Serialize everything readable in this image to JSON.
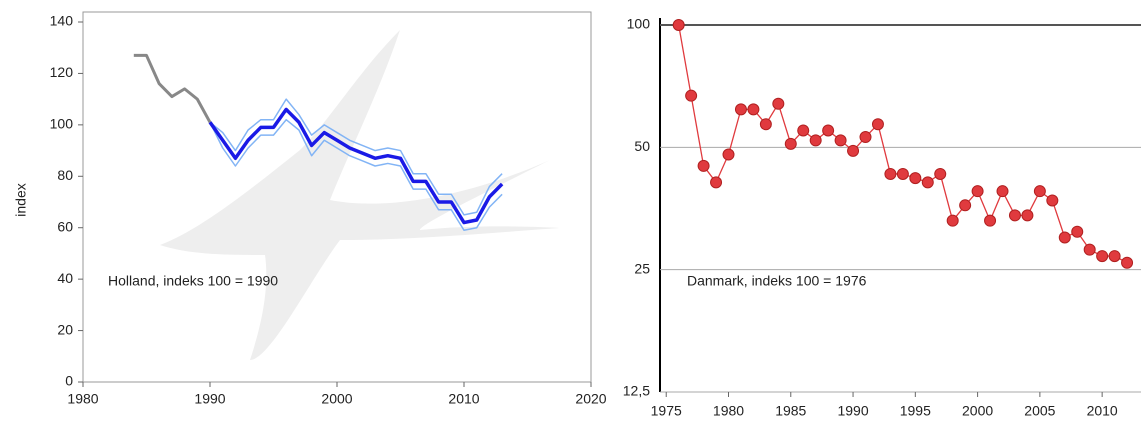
{
  "chart_data": [
    {
      "type": "line",
      "y_label": "index",
      "annotation": "Holland, indeks 100 = 1990",
      "xlim": [
        1980,
        2020
      ],
      "xticks": [
        1980,
        1990,
        2000,
        2010,
        2020
      ],
      "ylim": [
        0,
        140
      ],
      "yticks": [
        0,
        20,
        40,
        60,
        80,
        100,
        120,
        140
      ],
      "series": [
        {
          "color": "#888888",
          "x": [
            1984,
            1985,
            1986,
            1987,
            1988,
            1989,
            1990
          ],
          "values": [
            127,
            127,
            116,
            111,
            114,
            110,
            101
          ]
        },
        {
          "color": "#82b4f5",
          "x": [
            1990,
            1991,
            1992,
            1993,
            1994,
            1995,
            1996,
            1997,
            1998,
            1999,
            2000,
            2001,
            2002,
            2003,
            2004,
            2005,
            2006,
            2007,
            2008,
            2009,
            2010,
            2011,
            2012,
            2013
          ],
          "values": [
            101,
            97,
            90,
            98,
            102,
            102,
            110,
            104,
            96,
            100,
            97,
            94,
            92,
            90,
            91,
            90,
            81,
            81,
            73,
            73,
            65,
            66,
            76,
            81
          ]
        },
        {
          "color": "#82b4f5",
          "x": [
            1990,
            1991,
            1992,
            1993,
            1994,
            1995,
            1996,
            1997,
            1998,
            1999,
            2000,
            2001,
            2002,
            2003,
            2004,
            2005,
            2006,
            2007,
            2008,
            2009,
            2010,
            2011,
            2012,
            2013
          ],
          "values": [
            101,
            91,
            84,
            91,
            96,
            96,
            102,
            98,
            88,
            94,
            91,
            88,
            86,
            84,
            85,
            84,
            75,
            75,
            67,
            67,
            59,
            60,
            68,
            73
          ]
        },
        {
          "color": "#1a1ae6",
          "x": [
            1990,
            1991,
            1992,
            1993,
            1994,
            1995,
            1996,
            1997,
            1998,
            1999,
            2000,
            2001,
            2002,
            2003,
            2004,
            2005,
            2006,
            2007,
            2008,
            2009,
            2010,
            2011,
            2012,
            2013
          ],
          "values": [
            101,
            94,
            87,
            94,
            99,
            99,
            106,
            101,
            92,
            97,
            94,
            91,
            89,
            87,
            88,
            87,
            78,
            78,
            70,
            70,
            62,
            63,
            72,
            77
          ]
        }
      ]
    },
    {
      "type": "line",
      "annotation": "Danmark, indeks 100 = 1976",
      "log_scale": true,
      "color": "#e03a3e",
      "xlim": [
        1974.5,
        2013.2
      ],
      "xticks": [
        1975,
        1980,
        1985,
        1990,
        1995,
        2000,
        2005,
        2010
      ],
      "ylim": [
        12.5,
        100
      ],
      "yticks": [
        {
          "value": 12.5,
          "label": "12,5"
        },
        25,
        50,
        100
      ],
      "x": [
        1976,
        1977,
        1978,
        1979,
        1980,
        1981,
        1982,
        1983,
        1984,
        1985,
        1986,
        1987,
        1988,
        1989,
        1990,
        1991,
        1992,
        1993,
        1994,
        1995,
        1996,
        1997,
        1998,
        1999,
        2000,
        2001,
        2002,
        2003,
        2004,
        2005,
        2006,
        2007,
        2008,
        2009,
        2010,
        2011,
        2012
      ],
      "values": [
        100,
        67,
        45,
        41,
        48,
        62,
        62,
        57,
        64,
        51,
        55,
        52,
        55,
        52,
        49,
        53,
        57,
        43,
        43,
        42,
        41,
        43,
        33,
        36,
        39,
        33,
        39,
        34,
        34,
        39,
        37,
        30,
        31,
        28,
        27,
        27,
        26
      ]
    }
  ]
}
